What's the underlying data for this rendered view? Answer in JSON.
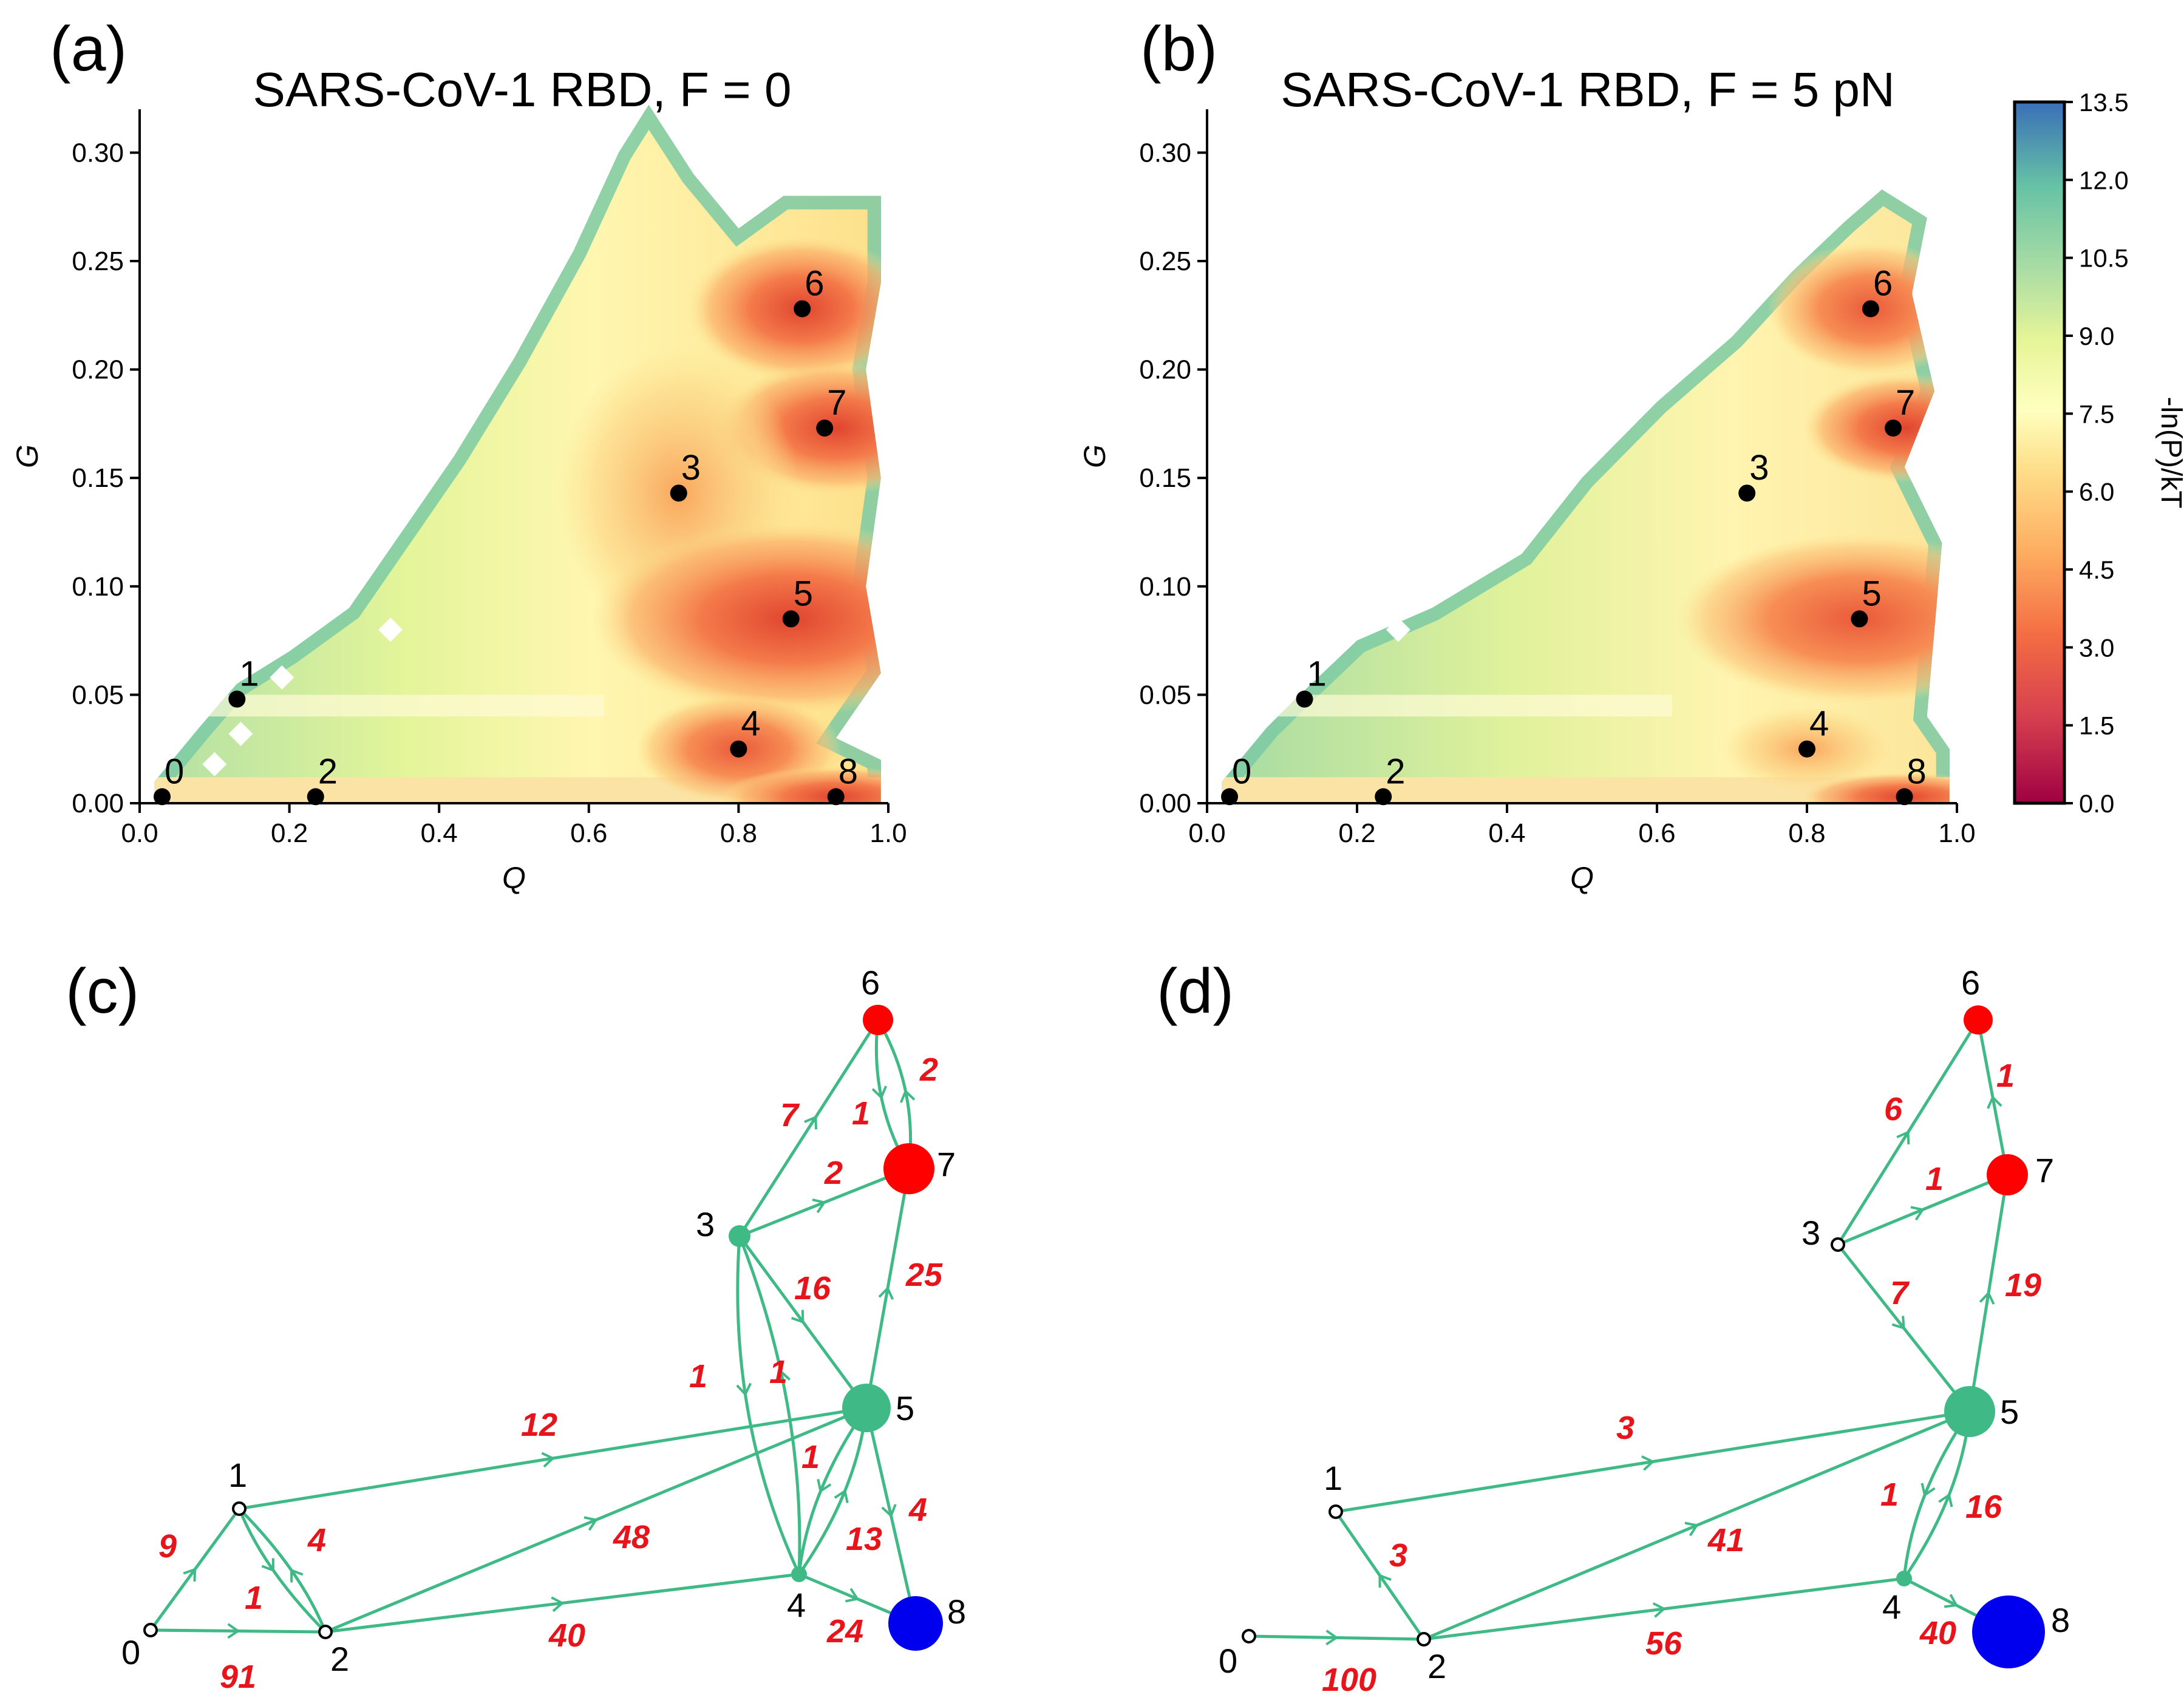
{
  "chart_data": [
    {
      "type": "heatmap",
      "panel": "(a)",
      "title": "SARS-CoV-1 RBD, F = 0",
      "xlabel": "Q",
      "ylabel": "G",
      "xlim": [
        0.0,
        1.0
      ],
      "ylim": [
        0.0,
        0.32
      ],
      "xticks": [
        "0.0",
        "0.2",
        "0.4",
        "0.6",
        "0.8",
        "1.0"
      ],
      "yticks": [
        "0.00",
        "0.05",
        "0.10",
        "0.15",
        "0.20",
        "0.25",
        "0.30"
      ],
      "states": [
        {
          "id": "0",
          "q": 0.03,
          "g": 0.003
        },
        {
          "id": "1",
          "q": 0.13,
          "g": 0.048
        },
        {
          "id": "2",
          "q": 0.235,
          "g": 0.003
        },
        {
          "id": "3",
          "q": 0.72,
          "g": 0.143
        },
        {
          "id": "4",
          "q": 0.8,
          "g": 0.025
        },
        {
          "id": "5",
          "q": 0.87,
          "g": 0.085
        },
        {
          "id": "6",
          "q": 0.885,
          "g": 0.228
        },
        {
          "id": "7",
          "q": 0.915,
          "g": 0.173
        },
        {
          "id": "8",
          "q": 0.93,
          "g": 0.003
        }
      ]
    },
    {
      "type": "heatmap",
      "panel": "(b)",
      "title": "SARS-CoV-1 RBD, F = 5 pN",
      "xlabel": "Q",
      "ylabel": "G",
      "xlim": [
        0.0,
        1.0
      ],
      "ylim": [
        0.0,
        0.32
      ],
      "xticks": [
        "0.0",
        "0.2",
        "0.4",
        "0.6",
        "0.8",
        "1.0"
      ],
      "yticks": [
        "0.00",
        "0.05",
        "0.10",
        "0.15",
        "0.20",
        "0.25",
        "0.30"
      ],
      "colorbar": {
        "label": "-ln(P)/kT",
        "range": [
          0.0,
          13.5
        ],
        "ticks": [
          "0.0",
          "1.5",
          "3.0",
          "4.5",
          "6.0",
          "7.5",
          "9.0",
          "10.5",
          "12.0",
          "13.5"
        ]
      },
      "states": [
        {
          "id": "0",
          "q": 0.03,
          "g": 0.003
        },
        {
          "id": "1",
          "q": 0.13,
          "g": 0.048
        },
        {
          "id": "2",
          "q": 0.235,
          "g": 0.003
        },
        {
          "id": "3",
          "q": 0.72,
          "g": 0.143
        },
        {
          "id": "4",
          "q": 0.8,
          "g": 0.025
        },
        {
          "id": "5",
          "q": 0.87,
          "g": 0.085
        },
        {
          "id": "6",
          "q": 0.885,
          "g": 0.228
        },
        {
          "id": "7",
          "q": 0.915,
          "g": 0.173
        },
        {
          "id": "8",
          "q": 0.93,
          "g": 0.003
        }
      ]
    },
    {
      "type": "network",
      "panel": "(c)",
      "nodes": [
        "0",
        "1",
        "2",
        "3",
        "4",
        "5",
        "6",
        "7",
        "8"
      ],
      "flux_labels": [
        "9",
        "1",
        "4",
        "91",
        "12",
        "48",
        "40",
        "7",
        "1",
        "2",
        "2",
        "16",
        "25",
        "1",
        "1",
        "1",
        "13",
        "4",
        "24"
      ]
    },
    {
      "type": "network",
      "panel": "(d)",
      "nodes": [
        "0",
        "1",
        "2",
        "3",
        "4",
        "5",
        "6",
        "7",
        "8"
      ],
      "flux_labels": [
        "3",
        "100",
        "3",
        "41",
        "56",
        "6",
        "1",
        "1",
        "7",
        "19",
        "1",
        "16",
        "40"
      ]
    }
  ]
}
